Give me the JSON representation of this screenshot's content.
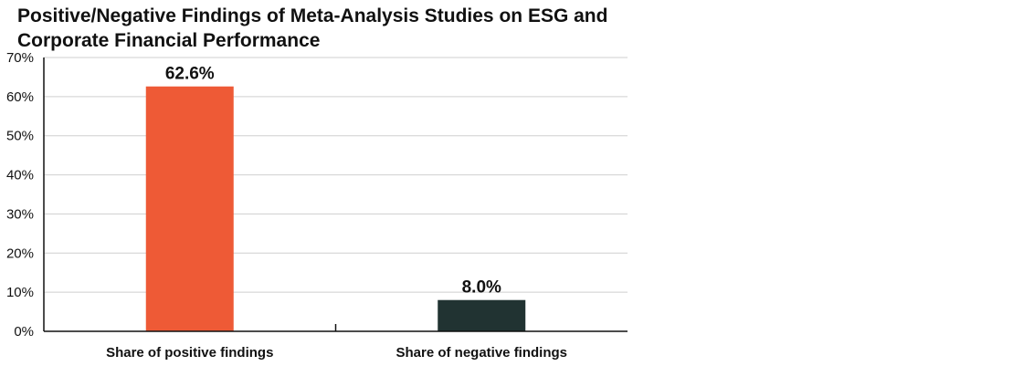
{
  "chart_data": {
    "type": "bar",
    "title": "Positive/Negative Findings of Meta-Analysis Studies on ESG and Corporate Financial Performance",
    "categories": [
      "Share of positive findings",
      "Share of negative findings"
    ],
    "values": [
      62.6,
      8.0
    ],
    "data_labels": [
      "62.6%",
      "8.0%"
    ],
    "colors": [
      "#ee5a36",
      "#213332"
    ],
    "ylim": [
      0,
      70
    ],
    "yticks": [
      0,
      10,
      20,
      30,
      40,
      50,
      60,
      70
    ],
    "ytick_labels": [
      "0%",
      "10%",
      "20%",
      "30%",
      "40%",
      "50%",
      "60%",
      "70%"
    ],
    "xlabel": "",
    "ylabel": "",
    "grid": true,
    "legend": "none"
  }
}
